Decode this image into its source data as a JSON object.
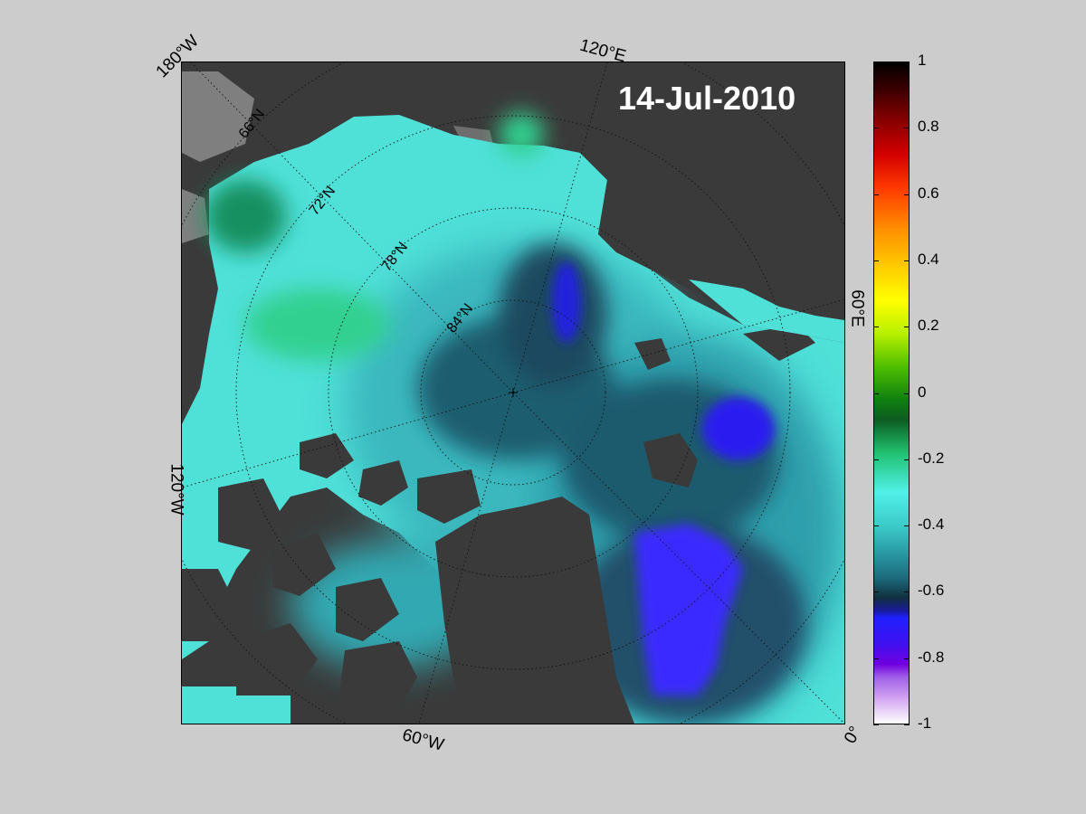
{
  "date": "14-Jul-2010",
  "edge_labels": {
    "top_left": "180°W",
    "top": "120°E",
    "right": "60°E",
    "left": "120°W",
    "bottom": "60°W",
    "bottom_right": "0°"
  },
  "lat_labels": [
    "66°N",
    "72°N",
    "78°N",
    "84°N"
  ],
  "colorbar": {
    "min": -1,
    "max": 1,
    "ticks": [
      "1",
      "0.8",
      "0.6",
      "0.4",
      "0.2",
      "0",
      "-0.2",
      "-0.4",
      "-0.6",
      "-0.8",
      "-1"
    ]
  },
  "colors": {
    "background": "#cccccc",
    "land": "#3a3a3a",
    "land_grey": "#808080",
    "ocean_cyan": "#4fe0d8",
    "ocean_teal": "#2a8a9a",
    "ocean_dark": "#1b4a5e",
    "ocean_blue": "#2222ee",
    "ocean_green": "#20b070"
  }
}
